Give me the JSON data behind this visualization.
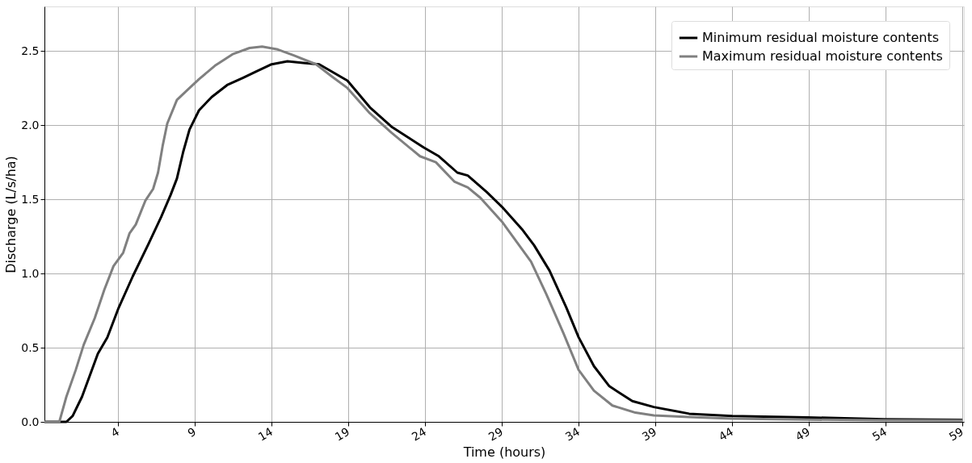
{
  "chart_data": {
    "type": "line",
    "xlabel": "Time (hours)",
    "ylabel": "Discharge (L/s/ha)",
    "xlim": [
      -0.8,
      59.1
    ],
    "ylim": [
      0,
      2.8
    ],
    "xticks": [
      4,
      9,
      14,
      19,
      24,
      29,
      34,
      39,
      44,
      49,
      54,
      59
    ],
    "yticks": [
      {
        "value": 0,
        "label": "0.0"
      },
      0.5,
      {
        "value": 1,
        "label": "1.0"
      },
      1.5,
      {
        "value": 2,
        "label": "2.0"
      },
      2.5
    ],
    "grid": true,
    "legend": "top right",
    "line_style": "solid",
    "marker": "none",
    "series": [
      {
        "name": "Minimum residual moisture contents",
        "color": "#000000",
        "x": [
          -0.8,
          0.63,
          1.04,
          1.65,
          2.68,
          3.3,
          4,
          4.95,
          5.98,
          6.8,
          7.42,
          7.83,
          8.24,
          8.65,
          9.27,
          10.1,
          11.1,
          12.15,
          12.97,
          14,
          15.03,
          16.06,
          17.1,
          18.1,
          18.94,
          20.4,
          21.8,
          23.9,
          24.9,
          26.1,
          26.78,
          28,
          29,
          30.3,
          31.1,
          32.1,
          33.2,
          34,
          35,
          36,
          37.5,
          38.9,
          41.2,
          44,
          48.9,
          53.9,
          59
        ],
        "values": [
          0,
          0,
          0.04,
          0.17,
          0.46,
          0.57,
          0.76,
          0.98,
          1.2,
          1.38,
          1.53,
          1.64,
          1.82,
          1.97,
          2.1,
          2.19,
          2.27,
          2.32,
          2.36,
          2.41,
          2.43,
          2.42,
          2.41,
          2.35,
          2.3,
          2.12,
          1.99,
          1.85,
          1.79,
          1.68,
          1.66,
          1.55,
          1.45,
          1.3,
          1.19,
          1.02,
          0.77,
          0.57,
          0.375,
          0.24,
          0.14,
          0.1,
          0.055,
          0.04,
          0.03,
          0.018,
          0.013
        ]
      },
      {
        "name": "Maximum residual moisture contents",
        "color": "#808080",
        "x": [
          -0.8,
          0.17,
          0.63,
          1.24,
          1.76,
          2.48,
          3.1,
          3.7,
          4.33,
          4.74,
          5.15,
          5.77,
          6.28,
          6.6,
          6.9,
          7.2,
          7.83,
          8.44,
          9.27,
          10.3,
          11.5,
          12.56,
          13.38,
          14.4,
          15.44,
          16.9,
          17.9,
          18.94,
          20.4,
          21.8,
          23.67,
          24.7,
          25.9,
          26.78,
          27.6,
          29,
          30.9,
          31.9,
          33,
          34,
          35,
          36.2,
          37.7,
          38.9,
          41.2,
          44,
          48.9,
          53.9,
          59
        ],
        "values": [
          0,
          0,
          0.17,
          0.35,
          0.52,
          0.7,
          0.89,
          1.05,
          1.14,
          1.27,
          1.33,
          1.49,
          1.57,
          1.68,
          1.86,
          2.01,
          2.17,
          2.23,
          2.31,
          2.4,
          2.48,
          2.52,
          2.53,
          2.51,
          2.47,
          2.41,
          2.33,
          2.25,
          2.08,
          1.95,
          1.79,
          1.75,
          1.62,
          1.58,
          1.51,
          1.35,
          1.08,
          0.86,
          0.6,
          0.35,
          0.21,
          0.11,
          0.062,
          0.044,
          0.033,
          0.022,
          0.015,
          0.011,
          0.009
        ]
      }
    ]
  }
}
